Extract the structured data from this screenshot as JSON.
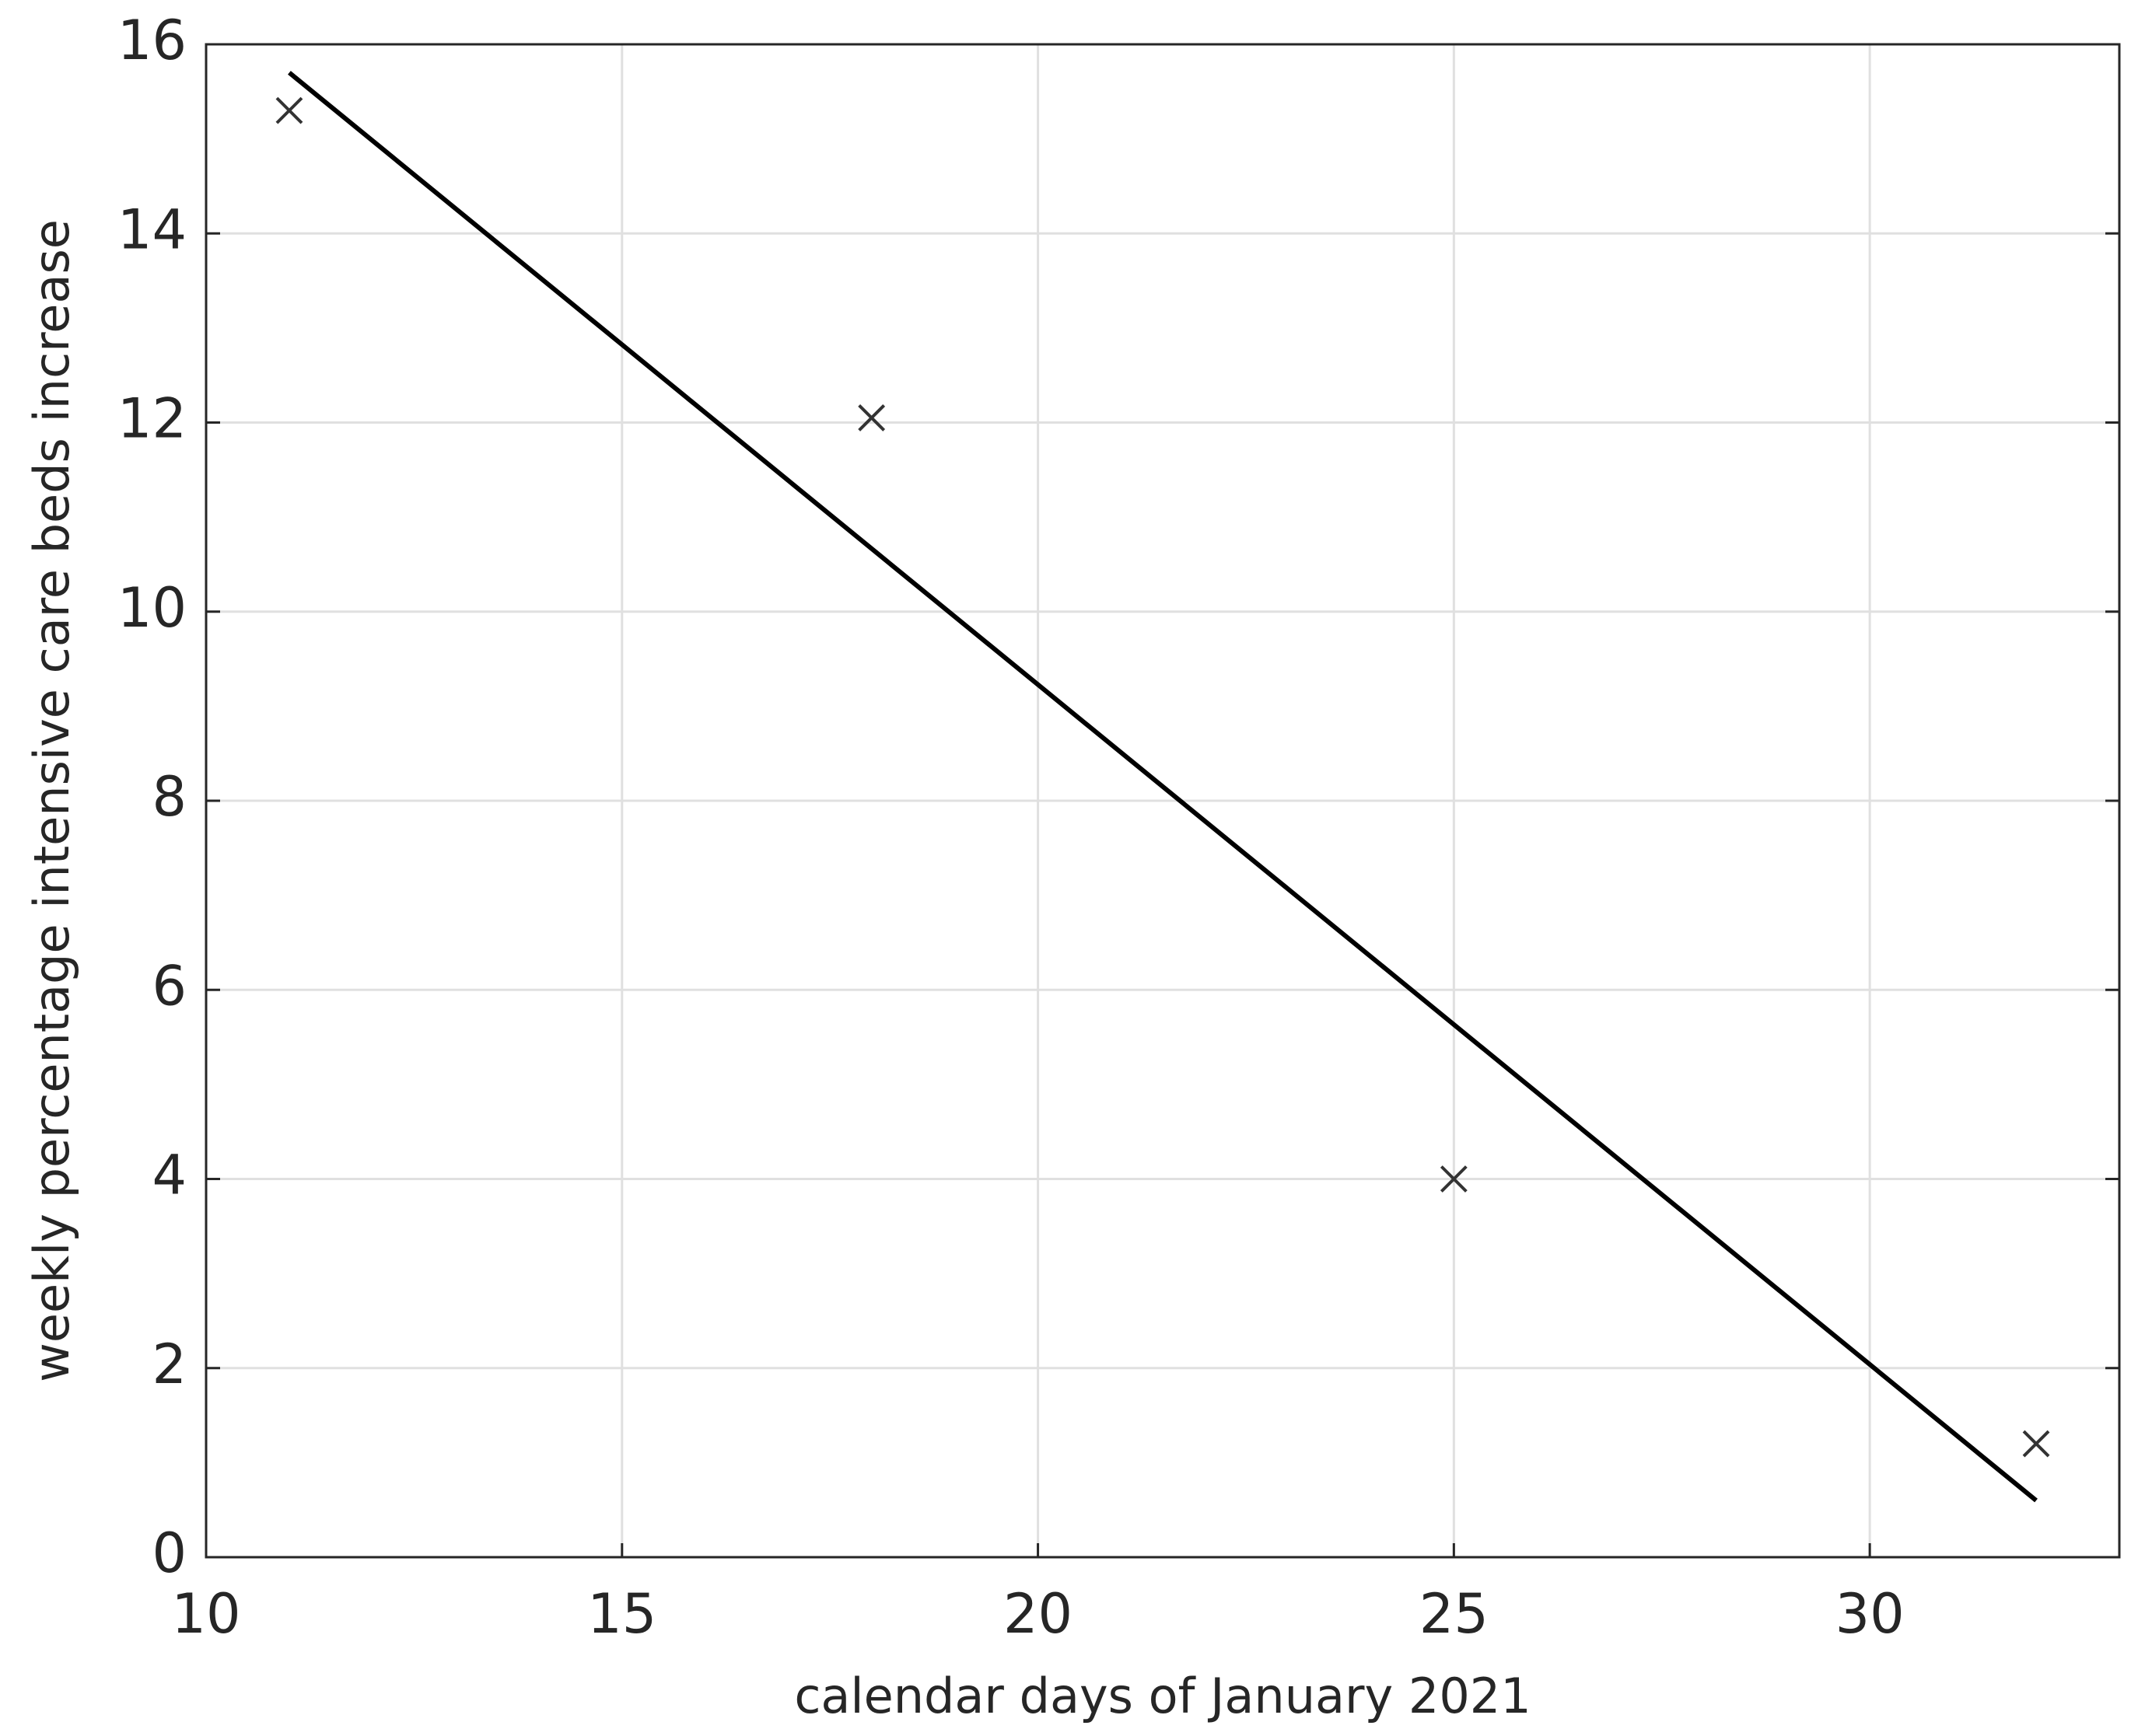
{
  "chart_data": {
    "type": "scatter",
    "xlabel": "calendar days of January 2021",
    "ylabel": "weekly percentage intensive care beds increase",
    "xlim": [
      10,
      33
    ],
    "ylim": [
      0,
      16
    ],
    "xticks": [
      10,
      15,
      20,
      25,
      30
    ],
    "yticks": [
      0,
      2,
      4,
      6,
      8,
      10,
      12,
      14,
      16
    ],
    "grid": true,
    "series": [
      {
        "type": "scatter",
        "marker": "x",
        "color": "#333333",
        "x": [
          11,
          18,
          25,
          32
        ],
        "values": [
          15.3,
          12.05,
          4.0,
          1.2
        ]
      },
      {
        "type": "line",
        "color": "#000000",
        "x": [
          11,
          32
        ],
        "values": [
          15.7,
          0.6
        ]
      }
    ]
  }
}
